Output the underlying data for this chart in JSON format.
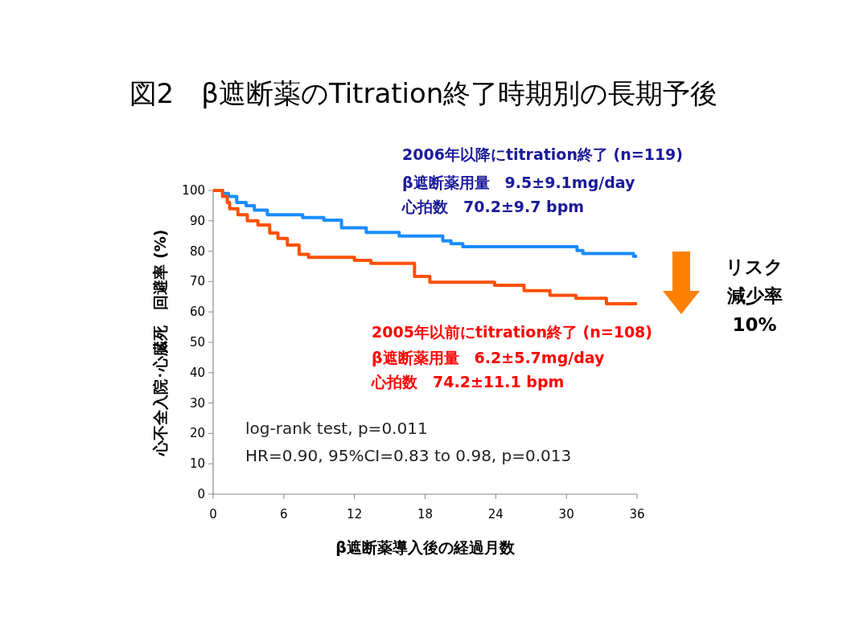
{
  "chart_data": {
    "type": "step",
    "title": "図2　β遮断薬のTitration終了時期別の長期予後",
    "xlabel": "β遮断薬導入後の経過月数",
    "ylabel": "心不全入院･心臓死　回避率 (%)",
    "xlim": [
      0,
      36
    ],
    "xticks": [
      0,
      6,
      12,
      18,
      24,
      30,
      36
    ],
    "ylim": [
      0,
      100
    ],
    "yticks": [
      0,
      10,
      20,
      30,
      40,
      50,
      60,
      70,
      80,
      90,
      100
    ],
    "grid": false,
    "legend": false,
    "marker": "none",
    "line_style": "solid",
    "series": [
      {
        "color": "#1a8cff",
        "x": [
          0,
          0.8,
          1.3,
          2.0,
          2.8,
          3.5,
          4.6,
          7.6,
          9.4,
          10.9,
          13.0,
          15.8,
          19.5,
          20.2,
          21.2,
          30.9,
          31.4,
          35.7,
          36
        ],
        "values": [
          100,
          99,
          98,
          96,
          95,
          93.5,
          92,
          91.1,
          90.2,
          87.7,
          86.2,
          85,
          83.4,
          82.5,
          81.5,
          80.2,
          79.2,
          78.3,
          78.3
        ]
      },
      {
        "color": "#ff5000",
        "x": [
          0,
          0.8,
          1.2,
          1.4,
          2.1,
          2.9,
          3.8,
          4.8,
          5.5,
          6.3,
          7.3,
          8.1,
          12.0,
          13.4,
          17.1,
          18.4,
          23.9,
          26.4,
          28.6,
          30.8,
          33.4,
          36
        ],
        "values": [
          100,
          98,
          96,
          94,
          92,
          90,
          88.6,
          86,
          84.2,
          82,
          79,
          78,
          77,
          76,
          71.7,
          69.8,
          68.8,
          67,
          65.5,
          64.5,
          62.7,
          62.7
        ]
      }
    ],
    "annotations": [
      "2006年以降にtitration終了 (n=119)",
      "β遮断薬用量　9.5±9.1mg/day",
      "心拍数　70.2±9.7 bpm",
      "2005年以前にtitration終了 (n=108)",
      "β遮断薬用量　6.2±5.7mg/day",
      "心拍数　74.2±11.1 bpm",
      "log-rank test, p=0.011",
      "HR=0.90, 95%CI=0.83 to 0.98, p=0.013",
      "リスク",
      "減少率",
      "10%"
    ]
  }
}
